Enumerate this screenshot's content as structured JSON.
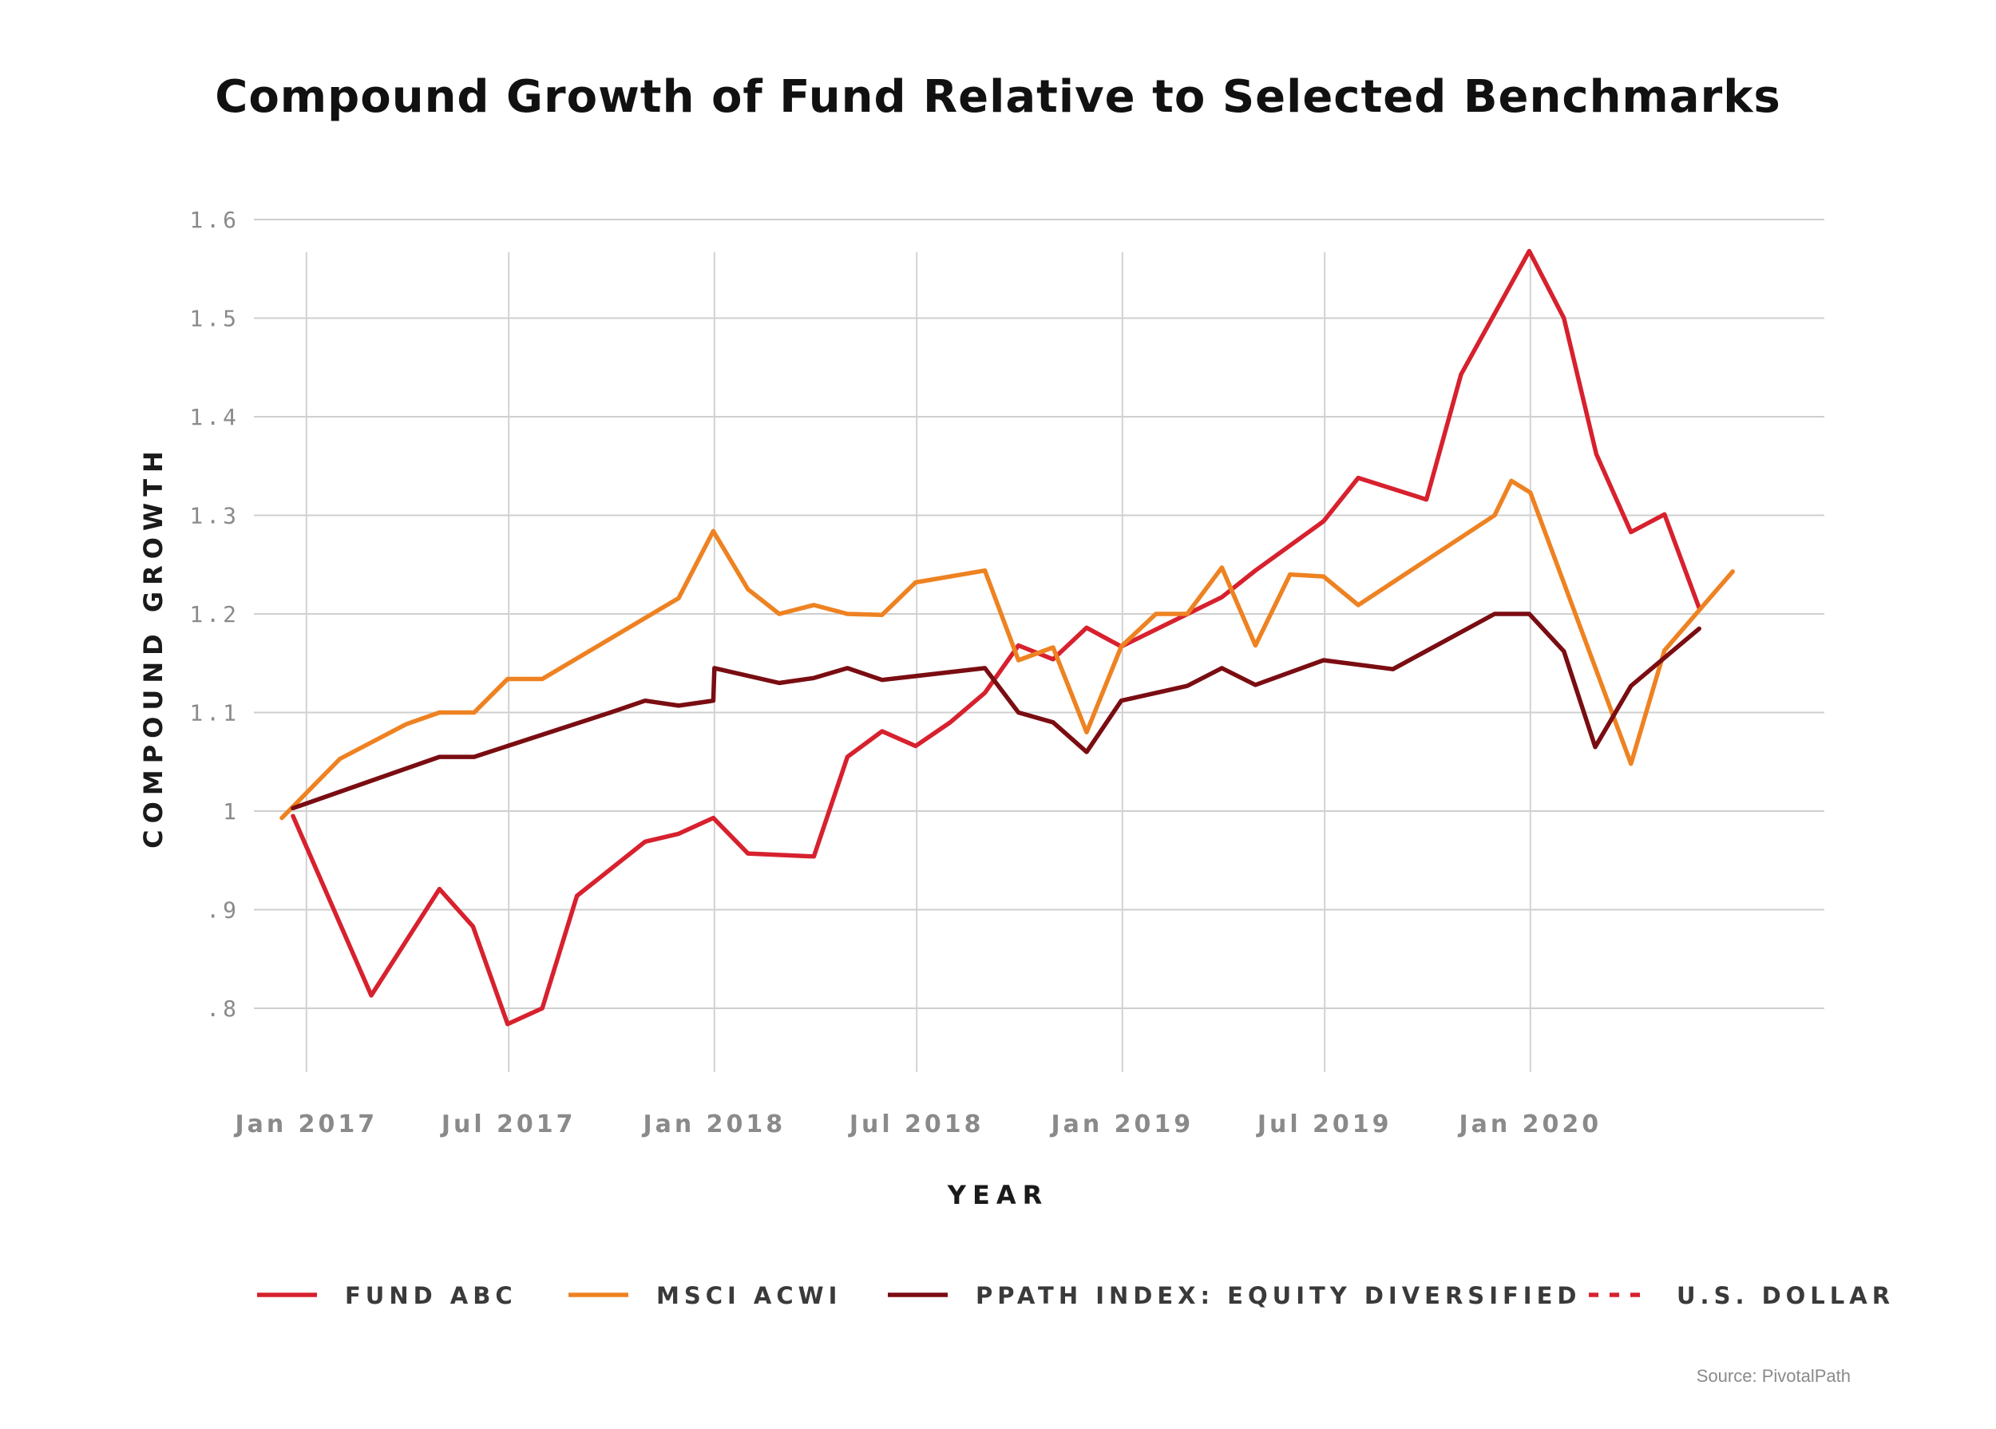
{
  "chart_data": {
    "type": "line",
    "title": "Compound Growth of Fund Relative to Selected Benchmarks",
    "xlabel": "YEAR",
    "ylabel": "COMPOUND GROWTH",
    "ylim": [
      0.73,
      1.63
    ],
    "yticks": [
      {
        "value": 1.6,
        "label": "1.6"
      },
      {
        "value": 1.5,
        "label": "1.5"
      },
      {
        "value": 1.4,
        "label": "1.4"
      },
      {
        "value": 1.3,
        "label": "1.3"
      },
      {
        "value": 1.2,
        "label": "1.2"
      },
      {
        "value": 1.1,
        "label": "1.1"
      },
      {
        "value": 1.0,
        "label": "1"
      },
      {
        "value": 0.9,
        "label": ".9"
      },
      {
        "value": 0.8,
        "label": ".8"
      }
    ],
    "xlim": [
      "2016-11-15",
      "2020-09-20"
    ],
    "xticks": [
      {
        "date": "2017-01-01",
        "label": "Jan 2017"
      },
      {
        "date": "2017-07-01",
        "label": "Jul 2017"
      },
      {
        "date": "2018-01-01",
        "label": "Jan 2018"
      },
      {
        "date": "2018-07-01",
        "label": "Jul 2018"
      },
      {
        "date": "2019-01-01",
        "label": "Jan 2019"
      },
      {
        "date": "2019-07-01",
        "label": "Jul 2019"
      },
      {
        "date": "2020-01-01",
        "label": "Jan 2020"
      }
    ],
    "grid": true,
    "legend_position": "bottom",
    "series": [
      {
        "name": "FUND ABC",
        "color": "#d7212e",
        "dashed": false,
        "points": [
          [
            "2016-12-20",
            0.995
          ],
          [
            "2017-02-28",
            0.813
          ],
          [
            "2017-04-30",
            0.921
          ],
          [
            "2017-05-30",
            0.883
          ],
          [
            "2017-06-30",
            0.784
          ],
          [
            "2017-07-31",
            0.8
          ],
          [
            "2017-08-31",
            0.914
          ],
          [
            "2017-10-31",
            0.969
          ],
          [
            "2017-11-30",
            0.977
          ],
          [
            "2017-12-31",
            0.993
          ],
          [
            "2018-01-31",
            0.957
          ],
          [
            "2018-03-31",
            0.954
          ],
          [
            "2018-04-30",
            1.055
          ],
          [
            "2018-05-31",
            1.081
          ],
          [
            "2018-06-30",
            1.066
          ],
          [
            "2018-07-31",
            1.09
          ],
          [
            "2018-08-31",
            1.12
          ],
          [
            "2018-09-30",
            1.168
          ],
          [
            "2018-10-31",
            1.154
          ],
          [
            "2018-11-30",
            1.186
          ],
          [
            "2018-12-31",
            1.167
          ],
          [
            "2019-03-31",
            1.217
          ],
          [
            "2019-04-30",
            1.244
          ],
          [
            "2019-06-30",
            1.294
          ],
          [
            "2019-07-31",
            1.338
          ],
          [
            "2019-09-30",
            1.316
          ],
          [
            "2019-10-31",
            1.443
          ],
          [
            "2019-12-31",
            1.568
          ],
          [
            "2020-01-31",
            1.5
          ],
          [
            "2020-02-29",
            1.362
          ],
          [
            "2020-03-31",
            1.283
          ],
          [
            "2020-04-30",
            1.301
          ],
          [
            "2020-05-31",
            1.206
          ]
        ]
      },
      {
        "name": "MSCI ACWI",
        "color": "#ee8222",
        "dashed": false,
        "points": [
          [
            "2016-12-10",
            0.993
          ],
          [
            "2017-01-31",
            1.053
          ],
          [
            "2017-03-31",
            1.088
          ],
          [
            "2017-04-30",
            1.1
          ],
          [
            "2017-05-31",
            1.1
          ],
          [
            "2017-06-30",
            1.134
          ],
          [
            "2017-07-31",
            1.134
          ],
          [
            "2017-11-30",
            1.216
          ],
          [
            "2017-12-31",
            1.284
          ],
          [
            "2018-01-31",
            1.225
          ],
          [
            "2018-02-28",
            1.2
          ],
          [
            "2018-03-31",
            1.209
          ],
          [
            "2018-04-30",
            1.2
          ],
          [
            "2018-05-31",
            1.199
          ],
          [
            "2018-06-30",
            1.232
          ],
          [
            "2018-08-31",
            1.244
          ],
          [
            "2018-09-30",
            1.153
          ],
          [
            "2018-10-31",
            1.166
          ],
          [
            "2018-11-30",
            1.08
          ],
          [
            "2018-12-31",
            1.167
          ],
          [
            "2019-01-31",
            1.2
          ],
          [
            "2019-02-28",
            1.2
          ],
          [
            "2019-03-31",
            1.247
          ],
          [
            "2019-04-30",
            1.168
          ],
          [
            "2019-05-31",
            1.24
          ],
          [
            "2019-06-30",
            1.238
          ],
          [
            "2019-07-31",
            1.209
          ],
          [
            "2019-11-30",
            1.3
          ],
          [
            "2019-12-15",
            1.335
          ],
          [
            "2020-01-01",
            1.323
          ],
          [
            "2020-03-31",
            1.048
          ],
          [
            "2020-04-30",
            1.163
          ],
          [
            "2020-06-30",
            1.243
          ]
        ]
      },
      {
        "name": "PPATH INDEX: EQUITY DIVERSIFIED",
        "color": "#7a0d12",
        "dashed": false,
        "points": [
          [
            "2016-12-20",
            1.003
          ],
          [
            "2017-04-30",
            1.055
          ],
          [
            "2017-05-31",
            1.055
          ],
          [
            "2017-09-30",
            1.1
          ],
          [
            "2017-10-31",
            1.112
          ],
          [
            "2017-11-30",
            1.107
          ],
          [
            "2017-12-31",
            1.112
          ],
          [
            "2018-01-01",
            1.145
          ],
          [
            "2018-02-28",
            1.13
          ],
          [
            "2018-03-31",
            1.135
          ],
          [
            "2018-04-30",
            1.145
          ],
          [
            "2018-05-31",
            1.133
          ],
          [
            "2018-08-31",
            1.145
          ],
          [
            "2018-09-30",
            1.1
          ],
          [
            "2018-10-31",
            1.09
          ],
          [
            "2018-11-30",
            1.06
          ],
          [
            "2018-12-31",
            1.112
          ],
          [
            "2019-02-28",
            1.127
          ],
          [
            "2019-03-31",
            1.145
          ],
          [
            "2019-04-30",
            1.128
          ],
          [
            "2019-06-30",
            1.153
          ],
          [
            "2019-08-31",
            1.144
          ],
          [
            "2019-11-30",
            1.2
          ],
          [
            "2019-12-31",
            1.2
          ],
          [
            "2020-01-31",
            1.162
          ],
          [
            "2020-02-28",
            1.065
          ],
          [
            "2020-03-31",
            1.127
          ],
          [
            "2020-05-31",
            1.185
          ]
        ]
      },
      {
        "name": "U.S. DOLLAR",
        "color": "#d7212e",
        "dashed": true,
        "points": []
      }
    ],
    "source": "Source: PivotalPath"
  }
}
